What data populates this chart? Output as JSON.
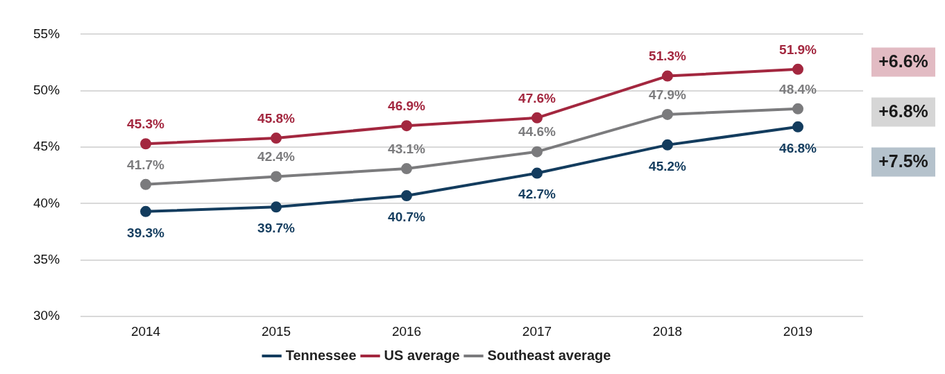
{
  "chart_data": {
    "type": "line",
    "categories": [
      "2014",
      "2015",
      "2016",
      "2017",
      "2018",
      "2019"
    ],
    "series": [
      {
        "name": "Tennessee",
        "color": "#133c5e",
        "values": [
          39.3,
          39.7,
          40.7,
          42.7,
          45.2,
          46.8
        ],
        "value_labels": [
          "39.3%",
          "39.7%",
          "40.7%",
          "42.7%",
          "45.2%",
          "46.8%"
        ]
      },
      {
        "name": "US average",
        "color": "#a3273f",
        "values": [
          45.3,
          45.8,
          46.9,
          47.6,
          51.3,
          51.9
        ],
        "value_labels": [
          "45.3%",
          "45.8%",
          "46.9%",
          "47.6%",
          "51.3%",
          "51.9%"
        ]
      },
      {
        "name": "Southeast average",
        "color": "#7b7b7d",
        "values": [
          41.7,
          42.4,
          43.1,
          44.6,
          47.9,
          48.4
        ],
        "value_labels": [
          "41.7%",
          "42.4%",
          "43.1%",
          "44.6%",
          "47.9%",
          "48.4%"
        ]
      }
    ],
    "ylim": [
      30,
      55
    ],
    "yticks": [
      {
        "value": 30,
        "label": "30%"
      },
      {
        "value": 35,
        "label": "35%"
      },
      {
        "value": 40,
        "label": "40%"
      },
      {
        "value": 45,
        "label": "45%"
      },
      {
        "value": 50,
        "label": "50%"
      },
      {
        "value": 55,
        "label": "55%"
      }
    ],
    "grid": "y",
    "legend": "bottom",
    "marker": "circle",
    "line_style": "solid",
    "annotations": [
      "+6.6%",
      "+6.8%",
      "+7.5%"
    ]
  }
}
